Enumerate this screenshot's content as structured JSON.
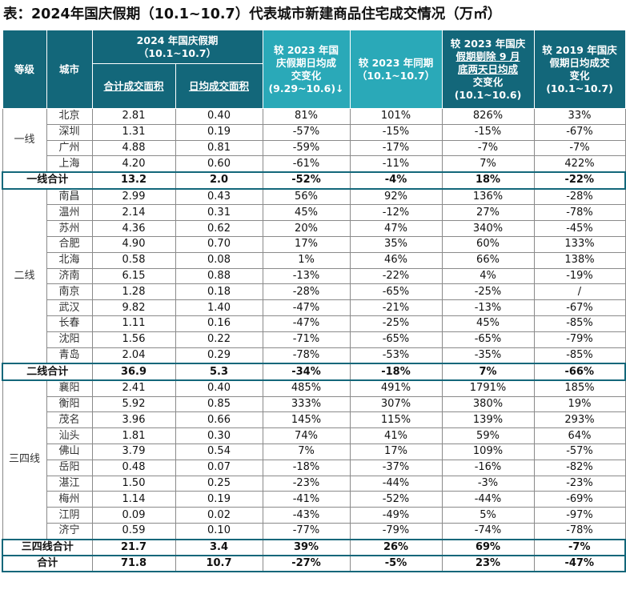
{
  "title": "表：2024年国庆假期（10.1~10.7）代表城市新建商品住宅成交情况（万㎡）",
  "headers": {
    "tier": "等级",
    "city": "城市",
    "group_top": "2024 年国庆假期",
    "group_period": "（10.1~10.7）",
    "total_area": "合计成交面积",
    "daily_area": "日均成交面积",
    "vs2023_pre": [
      "较 2023 年国",
      "庆假期日均成",
      "交变化",
      "(9.29~10.6)↓"
    ],
    "vs2023_same": [
      "较 2023 年同期",
      "（10.1~10.7）"
    ],
    "vs2023_excl": [
      "较 2023 年国庆",
      "假期剔除 9 月",
      "底两天日均成",
      "交变化",
      "(10.1~10.6)"
    ],
    "vs2019": [
      "较 2019 年国庆",
      "假期日均成交",
      "变化",
      "(10.1~10.7)"
    ]
  },
  "tiers": [
    {
      "name": "一线",
      "rows": [
        [
          "北京",
          "2.81",
          "0.40",
          "81%",
          "101%",
          "826%",
          "33%"
        ],
        [
          "深圳",
          "1.31",
          "0.19",
          "-57%",
          "-15%",
          "-15%",
          "-67%"
        ],
        [
          "广州",
          "4.88",
          "0.81",
          "-59%",
          "-17%",
          "-7%",
          "-7%"
        ],
        [
          "上海",
          "4.20",
          "0.60",
          "-61%",
          "-11%",
          "7%",
          "422%"
        ]
      ],
      "subtotal": [
        "一线合计",
        "13.2",
        "2.0",
        "-52%",
        "-4%",
        "18%",
        "-22%"
      ]
    },
    {
      "name": "二线",
      "rows": [
        [
          "南昌",
          "2.99",
          "0.43",
          "56%",
          "92%",
          "136%",
          "-28%"
        ],
        [
          "温州",
          "2.14",
          "0.31",
          "45%",
          "-12%",
          "27%",
          "-78%"
        ],
        [
          "苏州",
          "4.36",
          "0.62",
          "20%",
          "47%",
          "340%",
          "-45%"
        ],
        [
          "合肥",
          "4.90",
          "0.70",
          "17%",
          "35%",
          "60%",
          "133%"
        ],
        [
          "北海",
          "0.58",
          "0.08",
          "1%",
          "46%",
          "66%",
          "138%"
        ],
        [
          "济南",
          "6.15",
          "0.88",
          "-13%",
          "-22%",
          "4%",
          "-19%"
        ],
        [
          "南京",
          "1.28",
          "0.18",
          "-28%",
          "-65%",
          "-25%",
          "/"
        ],
        [
          "武汉",
          "9.82",
          "1.40",
          "-47%",
          "-21%",
          "-13%",
          "-67%"
        ],
        [
          "长春",
          "1.11",
          "0.16",
          "-47%",
          "-25%",
          "45%",
          "-85%"
        ],
        [
          "沈阳",
          "1.56",
          "0.22",
          "-71%",
          "-65%",
          "-65%",
          "-79%"
        ],
        [
          "青岛",
          "2.04",
          "0.29",
          "-78%",
          "-53%",
          "-35%",
          "-85%"
        ]
      ],
      "subtotal": [
        "二线合计",
        "36.9",
        "5.3",
        "-34%",
        "-18%",
        "7%",
        "-66%"
      ]
    },
    {
      "name": "三四线",
      "rows": [
        [
          "襄阳",
          "2.41",
          "0.40",
          "485%",
          "491%",
          "1791%",
          "185%"
        ],
        [
          "衡阳",
          "5.92",
          "0.85",
          "333%",
          "307%",
          "380%",
          "19%"
        ],
        [
          "茂名",
          "3.96",
          "0.66",
          "145%",
          "115%",
          "139%",
          "293%"
        ],
        [
          "汕头",
          "1.81",
          "0.30",
          "74%",
          "41%",
          "59%",
          "64%"
        ],
        [
          "佛山",
          "3.79",
          "0.54",
          "7%",
          "17%",
          "109%",
          "-57%"
        ],
        [
          "岳阳",
          "0.48",
          "0.07",
          "-18%",
          "-37%",
          "-16%",
          "-82%"
        ],
        [
          "湛江",
          "1.50",
          "0.25",
          "-23%",
          "-44%",
          "-3%",
          "-23%"
        ],
        [
          "梅州",
          "1.14",
          "0.19",
          "-41%",
          "-52%",
          "-44%",
          "-69%"
        ],
        [
          "江阴",
          "0.09",
          "0.02",
          "-43%",
          "-49%",
          "5%",
          "-97%"
        ],
        [
          "济宁",
          "0.59",
          "0.10",
          "-77%",
          "-79%",
          "-74%",
          "-78%"
        ]
      ],
      "subtotal": [
        "三四线合计",
        "21.7",
        "3.4",
        "39%",
        "26%",
        "69%",
        "-7%"
      ]
    }
  ],
  "total": [
    "合计",
    "71.8",
    "10.7",
    "-27%",
    "-5%",
    "23%",
    "-47%"
  ]
}
